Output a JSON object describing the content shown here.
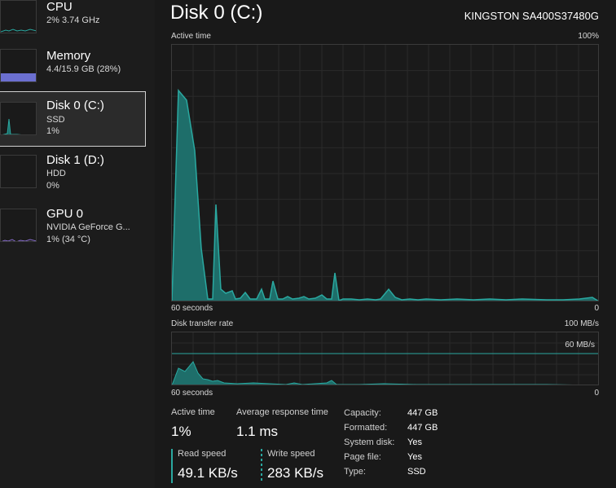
{
  "sidebar": {
    "items": [
      {
        "title": "CPU",
        "sub1": "2%  3.74 GHz",
        "sub2": ""
      },
      {
        "title": "Memory",
        "sub1": "4.4/15.9 GB (28%)",
        "sub2": ""
      },
      {
        "title": "Disk 0 (C:)",
        "sub1": "SSD",
        "sub2": "1%"
      },
      {
        "title": "Disk 1 (D:)",
        "sub1": "HDD",
        "sub2": "0%"
      },
      {
        "title": "GPU 0",
        "sub1": "NVIDIA GeForce G...",
        "sub2": "1% (34 °C)"
      }
    ]
  },
  "header": {
    "title": "Disk 0 (C:)",
    "model": "KINGSTON SA400S37480G"
  },
  "active_graph": {
    "label": "Active time",
    "max": "100%",
    "time_left": "60 seconds",
    "min": "0"
  },
  "transfer_graph": {
    "label": "Disk transfer rate",
    "max": "100 MB/s",
    "line_label": "60 MB/s",
    "time_left": "60 seconds",
    "min": "0"
  },
  "stats": {
    "active_time_label": "Active time",
    "active_time_value": "1%",
    "avg_response_label": "Average response time",
    "avg_response_value": "1.1 ms",
    "read_label": "Read speed",
    "read_value": "49.1 KB/s",
    "write_label": "Write speed",
    "write_value": "283 KB/s"
  },
  "details": [
    {
      "key": "Capacity:",
      "value": "447 GB"
    },
    {
      "key": "Formatted:",
      "value": "447 GB"
    },
    {
      "key": "System disk:",
      "value": "Yes"
    },
    {
      "key": "Page file:",
      "value": "Yes"
    },
    {
      "key": "Type:",
      "value": "SSD"
    }
  ],
  "colors": {
    "accent": "#2aa8a0",
    "fill": "#1e6e6a",
    "memory": "#6b6fd0",
    "gpu": "#8a6fd0"
  }
}
